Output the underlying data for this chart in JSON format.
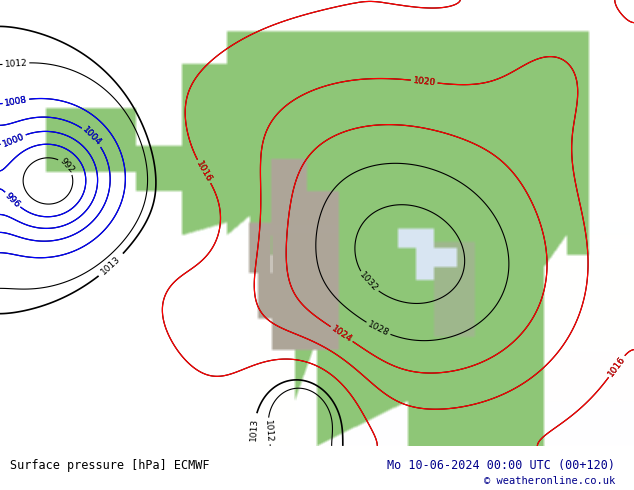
{
  "title_left": "Surface pressure [hPa] ECMWF",
  "title_right": "Mo 10-06-2024 00:00 UTC (00+120)",
  "copyright": "© weatheronline.co.uk",
  "bg_color": "#ffffff",
  "bottom_bar_color": "#d0d0d0",
  "figsize": [
    6.34,
    4.9
  ],
  "dpi": 100,
  "land_color": [
    0.56,
    0.78,
    0.47
  ],
  "mountain_color": [
    0.68,
    0.65,
    0.6
  ],
  "ocean_color": [
    1.0,
    1.0,
    1.0
  ]
}
